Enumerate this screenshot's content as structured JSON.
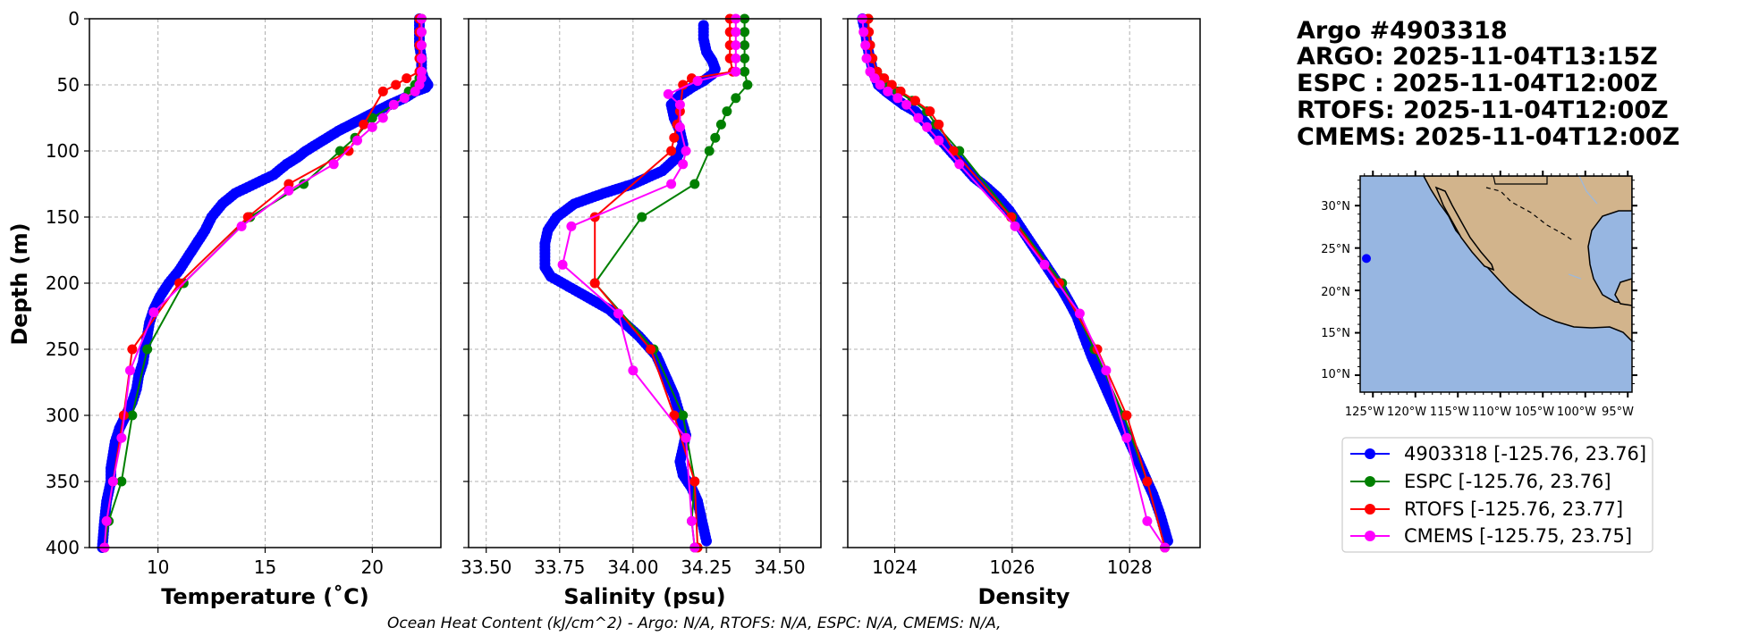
{
  "figure": {
    "info_lines": [
      "Argo #4903318",
      "ARGO: 2025-11-04T13:15Z",
      "ESPC : 2025-11-04T12:00Z",
      "RTOFS: 2025-11-04T12:00Z",
      "CMEMS: 2025-11-04T12:00Z"
    ],
    "footnote": "Ocean Heat Content (kJ/cm^2) - Argo: N/A,  RTOFS: N/A,  ESPC: N/A,  CMEMS: N/A,",
    "colors": {
      "argo": "#0000ff",
      "espc": "#008000",
      "rtofs": "#ff0000",
      "cmems": "#ff00ff",
      "ocean": "#97b6e1",
      "land": "#d2b48c"
    }
  },
  "map": {
    "lat_ticks": [
      "30°N",
      "25°N",
      "20°N",
      "15°N",
      "10°N"
    ],
    "lon_ticks": [
      "125°W",
      "120°W",
      "115°W",
      "110°W",
      "105°W",
      "100°W",
      "95°W"
    ],
    "lat_range": [
      8,
      33.5
    ],
    "lon_range": [
      -126.5,
      -94.5
    ],
    "float_position": [
      -125.76,
      23.76
    ]
  },
  "legend": [
    {
      "label": "4903318 [-125.76, 23.76]",
      "color": "#0000ff"
    },
    {
      "label": "ESPC [-125.76, 23.76]",
      "color": "#008000"
    },
    {
      "label": "RTOFS [-125.76, 23.77]",
      "color": "#ff0000"
    },
    {
      "label": "CMEMS [-125.75, 23.75]",
      "color": "#ff00ff"
    }
  ],
  "chart_data": [
    {
      "type": "line",
      "title": "",
      "xlabel": "Temperature (˚C)",
      "ylabel": "Depth (m)",
      "xlim": [
        6.8,
        23.2
      ],
      "ylim": [
        400,
        0
      ],
      "xticks": [
        10,
        15,
        20
      ],
      "yticks": [
        0,
        50,
        100,
        150,
        200,
        250,
        300,
        350,
        400
      ],
      "series": [
        {
          "name": "4903318",
          "color": "#0000ff",
          "dense": true,
          "x": [
            22.2,
            22.2,
            22.2,
            22.3,
            22.3,
            22.3,
            22.4,
            22.6,
            22.5,
            22.0,
            21.5,
            20.8,
            20.2,
            19.6,
            19.0,
            18.4,
            17.9,
            17.4,
            16.9,
            16.5,
            16.0,
            15.4,
            14.5,
            13.6,
            13.0,
            12.5,
            12.2,
            11.8,
            11.4,
            11.0,
            10.5,
            10.1,
            9.8,
            9.6,
            9.5,
            9.4,
            9.3,
            9.1,
            9.0,
            8.8,
            8.5,
            8.2,
            8.0,
            7.9,
            7.8,
            7.8,
            7.6,
            7.5,
            7.4
          ],
          "y": [
            0,
            10,
            20,
            30,
            35,
            40,
            45,
            50,
            52,
            55,
            60,
            65,
            70,
            75,
            80,
            85,
            90,
            95,
            100,
            105,
            110,
            118,
            125,
            132,
            140,
            150,
            160,
            170,
            180,
            190,
            200,
            210,
            220,
            230,
            240,
            250,
            260,
            270,
            280,
            290,
            300,
            310,
            320,
            330,
            340,
            350,
            365,
            380,
            400
          ]
        },
        {
          "name": "ESPC",
          "color": "#008000",
          "x": [
            22.3,
            22.3,
            22.3,
            22.3,
            22.3,
            22.2,
            22.0,
            21.7,
            21.0,
            20.0,
            19.2,
            18.5,
            16.8,
            14.3,
            11.2,
            9.5,
            8.8,
            8.3,
            7.7,
            7.5
          ],
          "y": [
            0,
            10,
            20,
            30,
            40,
            45,
            50,
            55,
            65,
            75,
            90,
            100,
            125,
            150,
            200,
            250,
            300,
            350,
            380,
            400
          ]
        },
        {
          "name": "RTOFS",
          "color": "#ff0000",
          "x": [
            22.2,
            22.2,
            22.2,
            22.2,
            22.2,
            21.6,
            21.1,
            20.5,
            19.6,
            18.9,
            16.1,
            14.2,
            11.0,
            8.8,
            8.4,
            7.9,
            7.6,
            7.5
          ],
          "y": [
            0,
            10,
            20,
            30,
            40,
            45,
            50,
            55,
            80,
            100,
            125,
            150,
            200,
            250,
            300,
            350,
            380,
            400
          ]
        },
        {
          "name": "CMEMS",
          "color": "#ff00ff",
          "x": [
            22.3,
            22.3,
            22.3,
            22.3,
            22.3,
            22.3,
            22.2,
            22.0,
            21.5,
            21.0,
            20.5,
            20.0,
            19.3,
            18.2,
            16.1,
            13.9,
            9.8,
            8.7,
            8.3,
            7.9,
            7.6,
            7.5
          ],
          "y": [
            0,
            10,
            20,
            30,
            40,
            45,
            50,
            55,
            60,
            65,
            75,
            82,
            92,
            110,
            130,
            157,
            222,
            266,
            317,
            350,
            380,
            400
          ]
        }
      ]
    },
    {
      "type": "line",
      "title": "",
      "xlabel": "Salinity (psu)",
      "ylabel": "",
      "xlim": [
        33.44,
        34.64
      ],
      "ylim": [
        400,
        0
      ],
      "xticks": [
        33.5,
        33.75,
        34.0,
        34.25,
        34.5
      ],
      "yticks": [
        0,
        50,
        100,
        150,
        200,
        250,
        300,
        350,
        400
      ],
      "series": [
        {
          "name": "4903318",
          "color": "#0000ff",
          "dense": true,
          "x": [
            34.24,
            34.24,
            34.25,
            34.27,
            34.28,
            34.27,
            34.24,
            34.2,
            34.16,
            34.13,
            34.14,
            34.16,
            34.17,
            34.15,
            34.1,
            34.0,
            33.9,
            33.8,
            33.74,
            33.71,
            33.7,
            33.7,
            33.7,
            33.72,
            33.8,
            33.92,
            34.02,
            34.08,
            34.1,
            34.12,
            34.14,
            34.16,
            34.18,
            34.17,
            34.16,
            34.17,
            34.2,
            34.22,
            34.23,
            34.24,
            34.25
          ],
          "y": [
            5,
            15,
            25,
            32,
            38,
            42,
            47,
            52,
            58,
            65,
            75,
            85,
            95,
            105,
            115,
            125,
            132,
            140,
            150,
            160,
            170,
            180,
            188,
            195,
            205,
            220,
            240,
            255,
            265,
            275,
            285,
            300,
            315,
            325,
            335,
            345,
            355,
            365,
            375,
            385,
            395
          ]
        },
        {
          "name": "ESPC",
          "color": "#008000",
          "x": [
            34.38,
            34.38,
            34.38,
            34.38,
            34.38,
            34.39,
            34.35,
            34.32,
            34.3,
            34.28,
            34.26,
            34.21,
            34.03,
            33.87,
            34.07,
            34.17,
            34.21,
            34.2,
            34.21
          ],
          "y": [
            0,
            10,
            20,
            30,
            40,
            50,
            60,
            70,
            80,
            90,
            100,
            125,
            150,
            200,
            250,
            300,
            350,
            380,
            400
          ]
        },
        {
          "name": "RTOFS",
          "color": "#ff0000",
          "x": [
            34.33,
            34.33,
            34.33,
            34.33,
            34.34,
            34.2,
            34.17,
            34.16,
            34.15,
            34.14,
            34.13,
            33.87,
            33.87,
            34.06,
            34.14,
            34.21,
            34.22
          ],
          "y": [
            0,
            10,
            20,
            30,
            40,
            45,
            50,
            70,
            80,
            90,
            100,
            150,
            200,
            250,
            300,
            350,
            400
          ]
        },
        {
          "name": "CMEMS",
          "color": "#ff00ff",
          "x": [
            34.35,
            34.35,
            34.35,
            34.35,
            34.35,
            34.22,
            34.12,
            34.16,
            34.16,
            34.18,
            34.17,
            34.13,
            33.79,
            33.76,
            33.95,
            34.0,
            34.18,
            34.2,
            34.21
          ],
          "y": [
            0,
            10,
            20,
            30,
            40,
            47,
            57,
            65,
            82,
            100,
            110,
            125,
            157,
            186,
            223,
            266,
            317,
            380,
            400
          ]
        }
      ]
    },
    {
      "type": "line",
      "title": "",
      "xlabel": "Density",
      "ylabel": "",
      "xlim": [
        1023.2,
        1029.2
      ],
      "ylim": [
        400,
        0
      ],
      "xticks": [
        1024,
        1026,
        1028
      ],
      "yticks": [
        0,
        50,
        100,
        150,
        200,
        250,
        300,
        350,
        400
      ],
      "series": [
        {
          "name": "4903318",
          "color": "#0000ff",
          "dense": true,
          "x": [
            1023.45,
            1023.5,
            1023.53,
            1023.58,
            1023.63,
            1023.72,
            1023.85,
            1024.0,
            1024.15,
            1024.35,
            1024.55,
            1024.75,
            1024.95,
            1025.15,
            1025.35,
            1025.55,
            1025.75,
            1025.95,
            1026.1,
            1026.25,
            1026.4,
            1026.55,
            1026.7,
            1026.85,
            1026.98,
            1027.1,
            1027.22,
            1027.35,
            1027.5,
            1027.65,
            1027.8,
            1027.95,
            1028.1,
            1028.25,
            1028.4,
            1028.52,
            1028.65
          ],
          "y": [
            0,
            10,
            20,
            30,
            40,
            50,
            55,
            60,
            65,
            70,
            80,
            90,
            100,
            110,
            120,
            127,
            135,
            145,
            155,
            165,
            175,
            185,
            195,
            205,
            215,
            225,
            240,
            255,
            270,
            285,
            300,
            315,
            330,
            345,
            360,
            375,
            395
          ]
        },
        {
          "name": "ESPC",
          "color": "#008000",
          "x": [
            1023.55,
            1023.55,
            1023.58,
            1023.62,
            1023.7,
            1023.78,
            1023.88,
            1024.05,
            1024.3,
            1024.55,
            1024.7,
            1025.1,
            1026.0,
            1026.85,
            1027.4,
            1027.9,
            1028.3,
            1028.6
          ],
          "y": [
            0,
            10,
            20,
            30,
            40,
            45,
            50,
            55,
            62,
            70,
            80,
            100,
            150,
            200,
            250,
            300,
            350,
            400
          ]
        },
        {
          "name": "RTOFS",
          "color": "#ff0000",
          "x": [
            1023.55,
            1023.56,
            1023.58,
            1023.62,
            1023.7,
            1023.82,
            1023.95,
            1024.1,
            1024.35,
            1024.6,
            1024.75,
            1025.0,
            1025.98,
            1026.8,
            1027.45,
            1027.95,
            1028.3,
            1028.6
          ],
          "y": [
            0,
            10,
            20,
            30,
            40,
            45,
            50,
            55,
            62,
            70,
            80,
            100,
            150,
            200,
            250,
            300,
            350,
            400
          ]
        },
        {
          "name": "CMEMS",
          "color": "#ff00ff",
          "x": [
            1023.45,
            1023.47,
            1023.5,
            1023.52,
            1023.58,
            1023.66,
            1023.75,
            1023.88,
            1024.05,
            1024.2,
            1024.4,
            1024.55,
            1024.75,
            1025.1,
            1026.05,
            1026.55,
            1027.15,
            1027.6,
            1027.95,
            1028.3,
            1028.6
          ],
          "y": [
            0,
            10,
            20,
            30,
            40,
            45,
            50,
            55,
            60,
            65,
            75,
            82,
            92,
            110,
            157,
            186,
            223,
            266,
            317,
            380,
            400
          ]
        }
      ]
    }
  ]
}
